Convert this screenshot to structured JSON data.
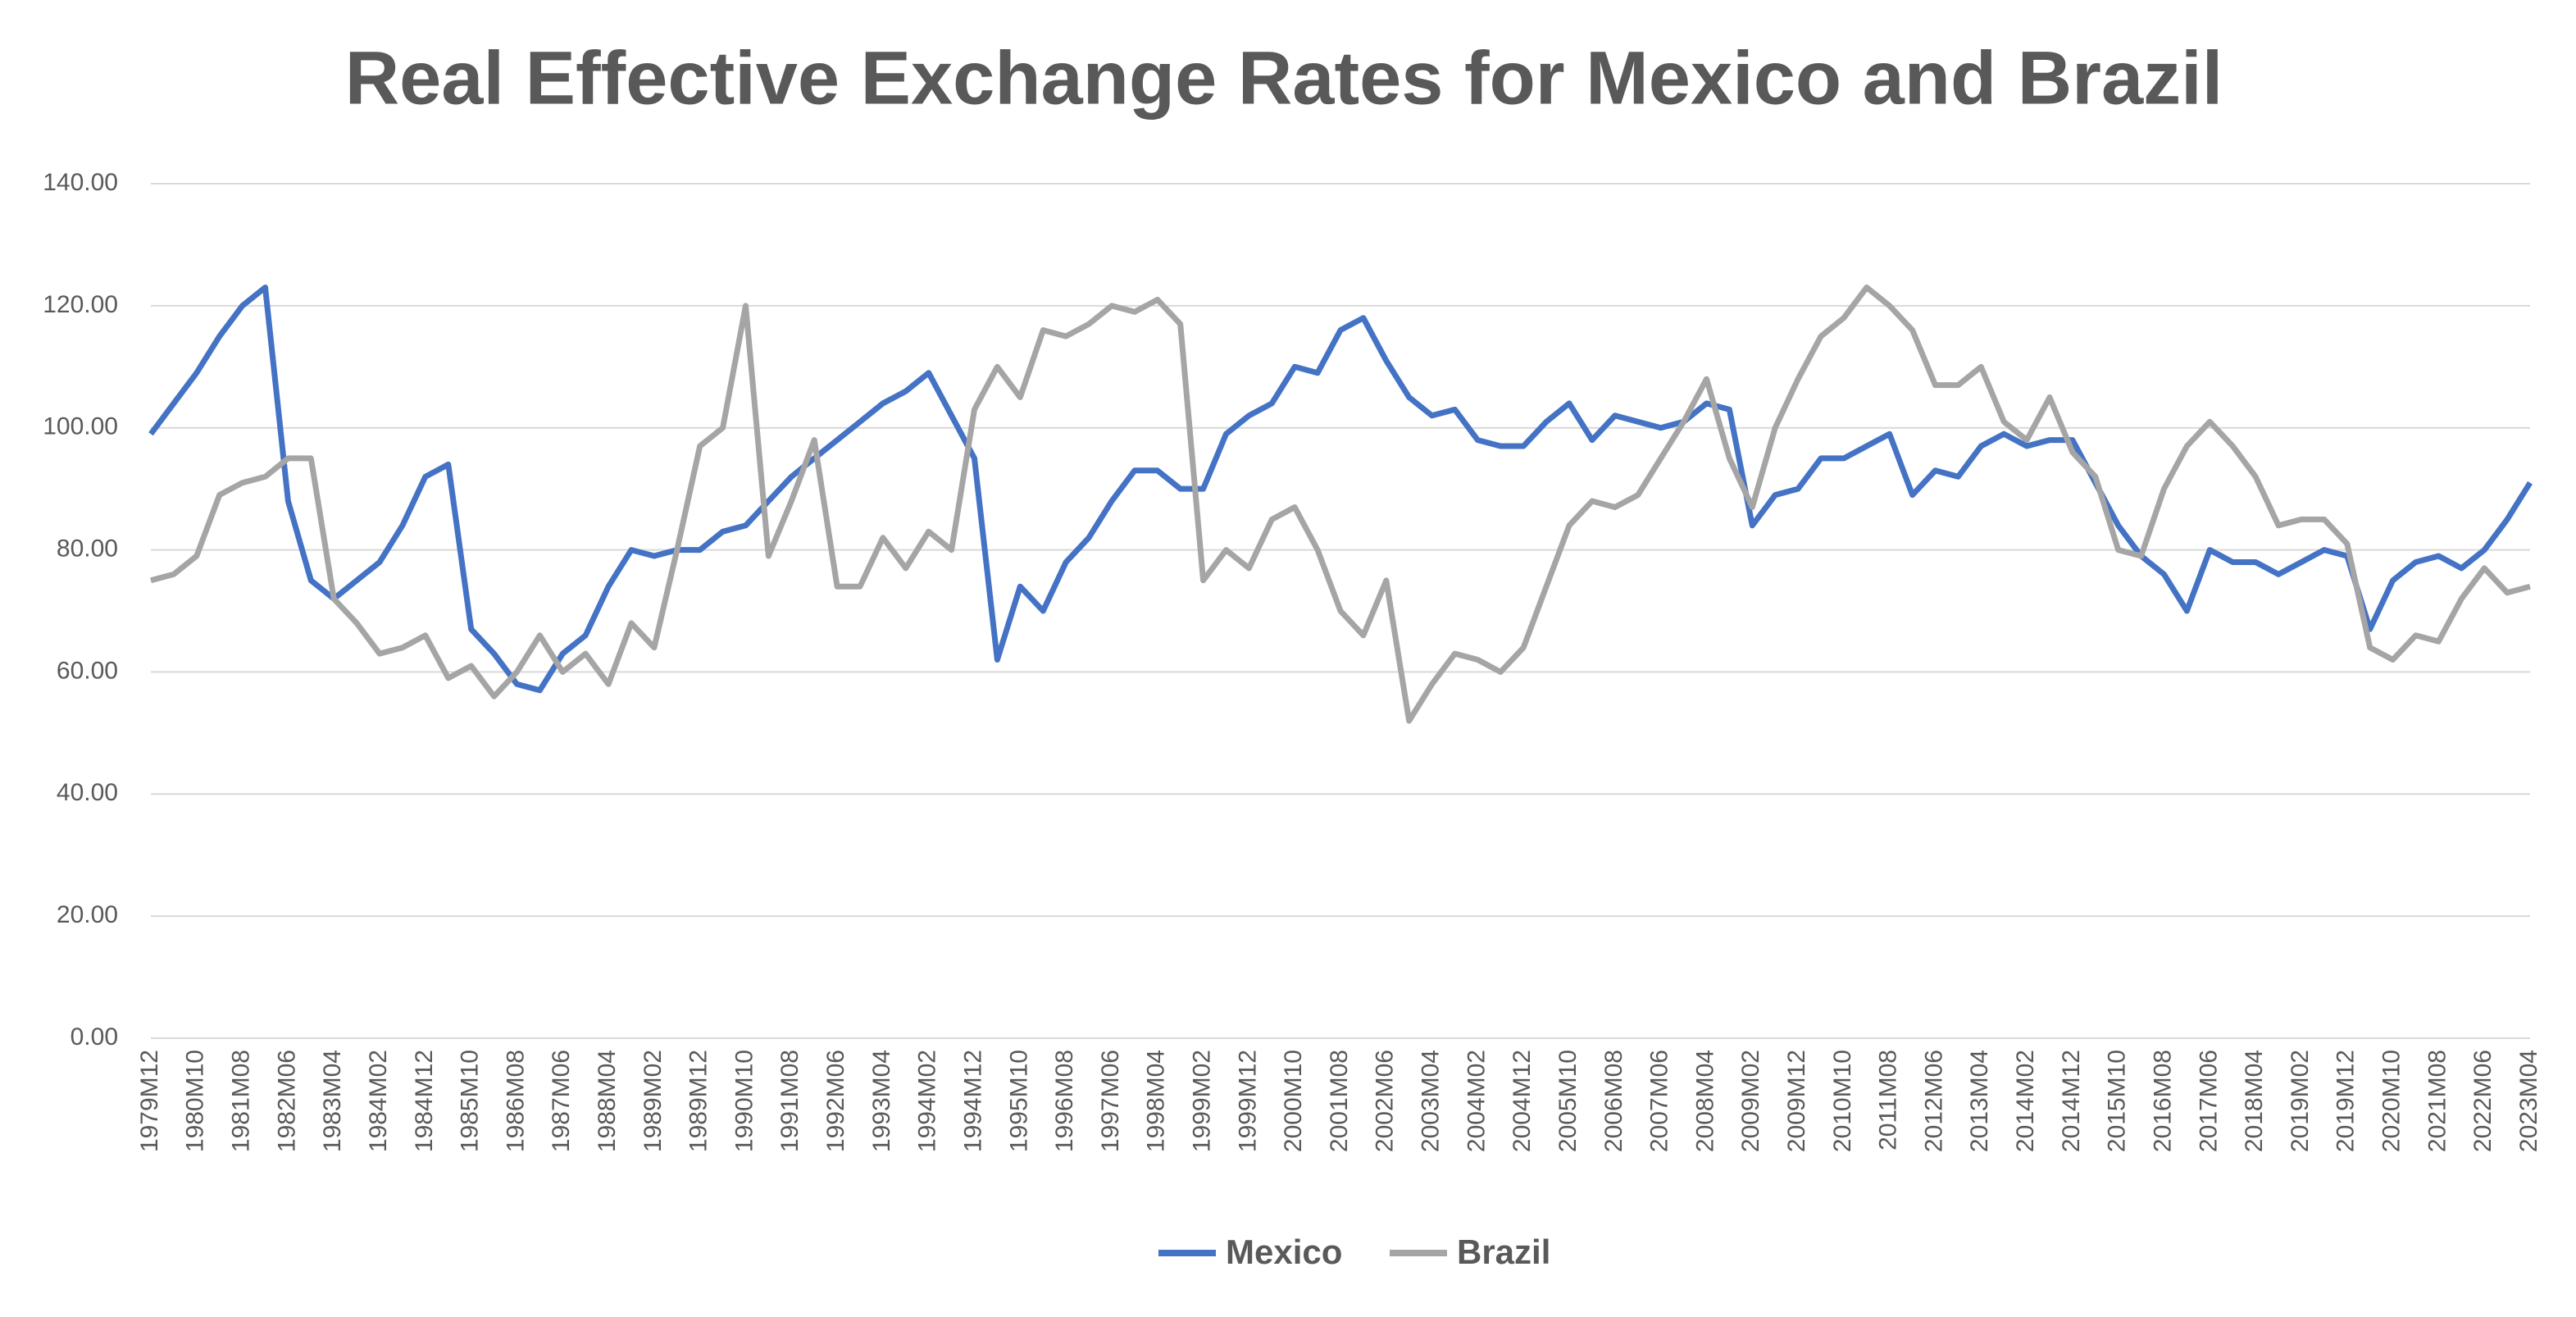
{
  "chart_data": {
    "type": "line",
    "title": "Real Effective Exchange Rates for Mexico and Brazil",
    "categories": [
      "1979M12",
      null,
      "1980M10",
      null,
      "1981M08",
      null,
      "1982M06",
      null,
      "1983M04",
      null,
      "1984M02",
      null,
      "1984M12",
      null,
      "1985M10",
      null,
      "1986M08",
      null,
      "1987M06",
      null,
      "1988M04",
      null,
      "1989M02",
      null,
      "1989M12",
      null,
      "1990M10",
      null,
      "1991M08",
      null,
      "1992M06",
      null,
      "1993M04",
      null,
      "1994M02",
      null,
      "1994M12",
      null,
      "1995M10",
      null,
      "1996M08",
      null,
      "1997M06",
      null,
      "1998M04",
      null,
      "1999M02",
      null,
      "1999M12",
      null,
      "2000M10",
      null,
      "2001M08",
      null,
      "2002M06",
      null,
      "2003M04",
      null,
      "2004M02",
      null,
      "2004M12",
      null,
      "2005M10",
      null,
      "2006M08",
      null,
      "2007M06",
      null,
      "2008M04",
      null,
      "2009M02",
      null,
      "2009M12",
      null,
      "2010M10",
      null,
      "2011M08",
      null,
      "2012M06",
      null,
      "2013M04",
      null,
      "2014M02",
      null,
      "2014M12",
      null,
      "2015M10",
      null,
      "2016M08",
      null,
      "2017M06",
      null,
      "2018M04",
      null,
      "2019M02",
      null,
      "2019M12",
      null,
      "2020M10",
      null,
      "2021M08",
      null,
      "2022M06",
      null,
      "2023M04"
    ],
    "series": [
      {
        "name": "Mexico",
        "color": "#4472c4",
        "values": [
          99,
          104,
          109,
          115,
          120,
          123,
          88,
          75,
          72,
          75,
          78,
          84,
          92,
          94,
          67,
          63,
          58,
          57,
          63,
          66,
          74,
          80,
          79,
          80,
          80,
          83,
          84,
          88,
          92,
          95,
          98,
          101,
          104,
          106,
          109,
          102,
          95,
          62,
          74,
          70,
          78,
          82,
          88,
          93,
          93,
          90,
          90,
          99,
          102,
          104,
          110,
          109,
          116,
          118,
          111,
          105,
          102,
          103,
          98,
          97,
          97,
          101,
          104,
          98,
          102,
          101,
          100,
          101,
          104,
          103,
          84,
          89,
          90,
          95,
          95,
          97,
          99,
          89,
          93,
          92,
          97,
          99,
          97,
          98,
          98,
          91,
          84,
          79,
          76,
          70,
          80,
          78,
          78,
          76,
          78,
          80,
          79,
          67,
          75,
          78,
          79,
          77,
          80,
          85,
          91
        ]
      },
      {
        "name": "Brazil",
        "color": "#a5a5a5",
        "values": [
          75,
          76,
          79,
          89,
          91,
          92,
          95,
          95,
          72,
          68,
          63,
          64,
          66,
          59,
          61,
          56,
          60,
          66,
          60,
          63,
          58,
          68,
          64,
          80,
          97,
          100,
          120,
          79,
          88,
          98,
          74,
          74,
          82,
          77,
          83,
          80,
          103,
          110,
          105,
          116,
          115,
          117,
          120,
          119,
          121,
          117,
          75,
          80,
          77,
          85,
          87,
          80,
          70,
          66,
          75,
          52,
          58,
          63,
          62,
          60,
          64,
          74,
          84,
          88,
          87,
          89,
          95,
          101,
          108,
          95,
          87,
          100,
          108,
          115,
          118,
          123,
          120,
          116,
          107,
          107,
          110,
          101,
          98,
          105,
          96,
          92,
          80,
          79,
          90,
          97,
          101,
          97,
          92,
          84,
          85,
          85,
          81,
          64,
          62,
          66,
          65,
          72,
          77,
          73,
          74
        ]
      }
    ],
    "ylim": [
      0,
      140
    ],
    "yticks": [
      {
        "value": 0,
        "label": "0.00"
      },
      {
        "value": 20,
        "label": "20.00"
      },
      {
        "value": 40,
        "label": "40.00"
      },
      {
        "value": 60,
        "label": "60.00"
      },
      {
        "value": 80,
        "label": "80.00"
      },
      {
        "value": 100,
        "label": "100.00"
      },
      {
        "value": 120,
        "label": "120.00"
      },
      {
        "value": 140,
        "label": "140.00"
      }
    ],
    "grid": true,
    "legend": "bottom"
  }
}
